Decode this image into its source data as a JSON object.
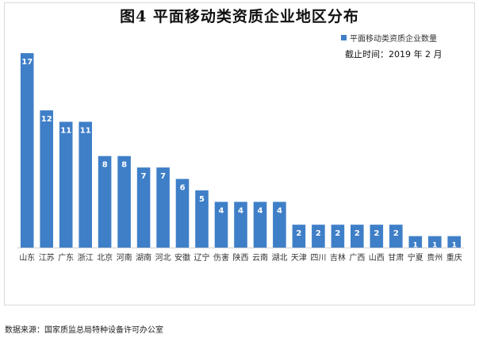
{
  "title": "图4 平面移动类资质企业地区分布",
  "cutoff_note": "截止时间：2019 年 2 月",
  "source_note": "数据来源：国家质监总局特种设备许可办公室",
  "colors": {
    "bar": "#3f7fc8",
    "bar_dark": "#2f6bb3",
    "label_text": "#ffffff"
  },
  "chart_data": {
    "type": "bar",
    "title": "图4 平面移动类资质企业地区分布",
    "legend_position": "top-right",
    "grid": false,
    "series": [
      {
        "name": "平面移动类资质企业数量",
        "values": [
          17,
          12,
          11,
          11,
          8,
          8,
          7,
          7,
          6,
          5,
          4,
          4,
          4,
          4,
          2,
          2,
          2,
          2,
          2,
          2,
          1,
          1,
          1
        ]
      }
    ],
    "categories": [
      "山东",
      "江苏",
      "广东",
      "浙江",
      "北京",
      "河南",
      "湖南",
      "河北",
      "安徽",
      "辽宁",
      "伤害",
      "陕西",
      "云南",
      "湖北",
      "天津",
      "四川",
      "吉林",
      "广西",
      "山西",
      "甘肃",
      "宁夏",
      "贵州",
      "重庆"
    ],
    "ylim": [
      0,
      17
    ]
  }
}
